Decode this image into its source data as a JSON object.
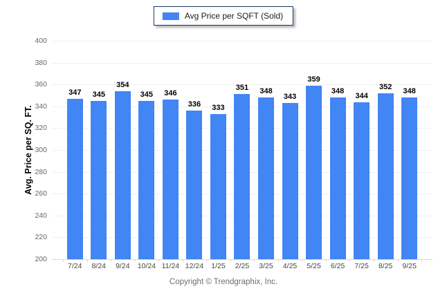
{
  "legend": {
    "label": "Avg Price per SQFT (Sold)",
    "swatch_color": "#4285F4"
  },
  "footer": {
    "text": "Copyright © Trendgraphix, Inc."
  },
  "colors": {
    "bar": "#4285F4",
    "gridline": "#efefef",
    "axis_line": "#d9d9d9",
    "y_tick_text": "#666666",
    "x_tick_text": "#444444",
    "value_label_text": "#000000",
    "legend_border": "#17375e",
    "footer_text": "#6e6e6e"
  },
  "chart_data": {
    "type": "bar",
    "title": "",
    "xlabel": "",
    "ylabel": "Avg. Price per SQ. FT.",
    "categories": [
      "7/24",
      "8/24",
      "9/24",
      "10/24",
      "11/24",
      "12/24",
      "1/25",
      "2/25",
      "3/25",
      "4/25",
      "5/25",
      "6/25",
      "7/25",
      "8/25",
      "9/25"
    ],
    "values": [
      347,
      345,
      354,
      345,
      346,
      336,
      333,
      351,
      348,
      343,
      359,
      348,
      344,
      352,
      348
    ],
    "series_name": "Avg Price per SQFT (Sold)",
    "ylim": [
      200,
      400
    ],
    "yticks": [
      200,
      220,
      240,
      260,
      280,
      300,
      320,
      340,
      360,
      380,
      400
    ],
    "grid": true,
    "value_labels": true,
    "legend_position": "top-center",
    "bar_color": "#4285F4"
  }
}
